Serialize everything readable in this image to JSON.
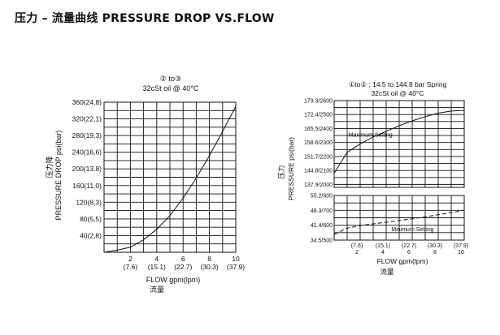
{
  "page_title": "压力 – 流量曲线 PRESSURE DROP VS.FLOW",
  "chart_data": [
    {
      "type": "line",
      "title": "② to③",
      "subtitle": "32cSt oil @ 40°C",
      "ylabel": "PRESSURE DROP psi(bar)",
      "ylabel_cn": "压力降",
      "xlabel": "FLOW gpm(lpm)",
      "xlabel_cn": "流量",
      "xlim": [
        0,
        10
      ],
      "ylim": [
        0,
        360
      ],
      "grid": true,
      "x_ticks": [
        {
          "value": 2,
          "gpm": "2",
          "lpm": "(7.6)"
        },
        {
          "value": 4,
          "gpm": "4",
          "lpm": "(15.1)"
        },
        {
          "value": 6,
          "gpm": "6",
          "lpm": "(22.7)"
        },
        {
          "value": 8,
          "gpm": "8",
          "lpm": "(30.3)"
        },
        {
          "value": 10,
          "gpm": "10",
          "lpm": "(37.9)"
        }
      ],
      "y_ticks": [
        {
          "value": 40,
          "label": "40(2,8)"
        },
        {
          "value": 80,
          "label": "80(5,5)"
        },
        {
          "value": 120,
          "label": "120(8,3)"
        },
        {
          "value": 160,
          "label": "160(11,0)"
        },
        {
          "value": 200,
          "label": "200(13.8)"
        },
        {
          "value": 240,
          "label": "240(16,6)"
        },
        {
          "value": 280,
          "label": "280(19,3)"
        },
        {
          "value": 320,
          "label": "320(22,1)"
        },
        {
          "value": 360,
          "label": "360(24,8)"
        }
      ],
      "series": [
        {
          "x": [
            0,
            1,
            2,
            3,
            4,
            5,
            6,
            7,
            8,
            9,
            10
          ],
          "y": [
            0,
            5,
            12,
            30,
            55,
            88,
            130,
            178,
            232,
            290,
            350
          ]
        }
      ]
    },
    {
      "type": "line",
      "title": "①to② ; 14.5 to 144.8 bar Spring",
      "subtitle": "32cSt oil @ 40°C",
      "ylabel": "PRESSURE psi(bar)",
      "ylabel_cn": "压力",
      "xlabel": "FLOW gpm(lpm)",
      "xlabel_cn": "流量",
      "xlim": [
        0,
        10
      ],
      "x_ticks": [
        {
          "value": 2,
          "gpm": "2",
          "lpm": "(7.6)"
        },
        {
          "value": 4,
          "gpm": "4",
          "lpm": "(15.1)"
        },
        {
          "value": 6,
          "gpm": "6",
          "lpm": "(22.7)"
        },
        {
          "value": 8,
          "gpm": "8",
          "lpm": "(30.3)"
        },
        {
          "value": 10,
          "gpm": "10",
          "lpm": "(37.9)"
        }
      ],
      "panels": [
        {
          "name": "upper",
          "ylim": [
            1979,
            2600
          ],
          "grid": true,
          "y_ticks": [
            {
              "value": 2000,
              "label": "137.9/2000"
            },
            {
              "value": 2100,
              "label": "144.8/2100"
            },
            {
              "value": 2200,
              "label": "151.7/2200"
            },
            {
              "value": 2300,
              "label": "158.6/2300"
            },
            {
              "value": 2400,
              "label": "165.5/2400"
            },
            {
              "value": 2500,
              "label": "172.4/2500"
            },
            {
              "value": 2600,
              "label": "179.3/2600"
            }
          ],
          "series": [
            {
              "name": "Maximum Setting",
              "style": "solid",
              "x": [
                0,
                1,
                2,
                3,
                4,
                5,
                6,
                7,
                8,
                9,
                10
              ],
              "y": [
                2080,
                2230,
                2290,
                2340,
                2380,
                2420,
                2455,
                2485,
                2510,
                2525,
                2530
              ]
            }
          ]
        },
        {
          "name": "lower",
          "ylim": [
            500,
            800
          ],
          "grid": true,
          "y_ticks": [
            {
              "value": 500,
              "label": "34.5/500"
            },
            {
              "value": 600,
              "label": "41.4/600"
            },
            {
              "value": 700,
              "label": "48.3/700"
            },
            {
              "value": 800,
              "label": "55.2/800"
            }
          ],
          "series": [
            {
              "name": "Minimum Setting",
              "style": "dashed",
              "x": [
                0,
                1,
                2,
                4,
                6,
                8,
                10
              ],
              "y": [
                538,
                580,
                598,
                620,
                643,
                670,
                700
              ]
            }
          ]
        }
      ]
    }
  ]
}
